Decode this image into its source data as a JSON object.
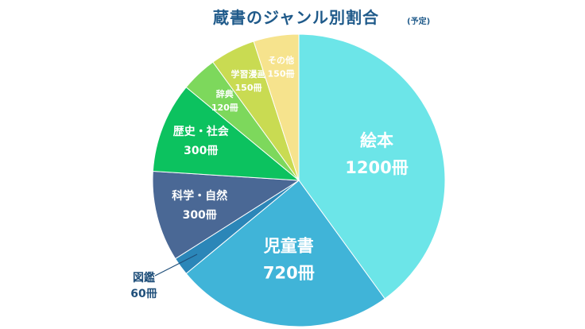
{
  "chart_data": {
    "type": "pie",
    "title": "蔵書のジャンル別割合",
    "subtitle": "(予定)",
    "unit": "冊",
    "start_angle_deg": 0,
    "direction": "clockwise",
    "slices": [
      {
        "label": "絵本",
        "value": 1200,
        "value_label": "1200冊",
        "color": "#6ce5e8"
      },
      {
        "label": "児童書",
        "value": 720,
        "value_label": "720冊",
        "color": "#40b4d8"
      },
      {
        "label": "図鑑",
        "value": 60,
        "value_label": "60冊",
        "color": "#2b86b8",
        "label_outside": true
      },
      {
        "label": "科学・自然",
        "value": 300,
        "value_label": "300冊",
        "color": "#4a6895"
      },
      {
        "label": "歴史・社会",
        "value": 300,
        "value_label": "300冊",
        "color": "#0cc25f"
      },
      {
        "label": "辞典",
        "value": 120,
        "value_label": "120冊",
        "color": "#7dd85c"
      },
      {
        "label": "学習漫画",
        "value": 150,
        "value_label": "150冊",
        "color": "#c9db52"
      },
      {
        "label": "その他",
        "value": 150,
        "value_label": "150冊",
        "color": "#f6e38d"
      }
    ]
  }
}
